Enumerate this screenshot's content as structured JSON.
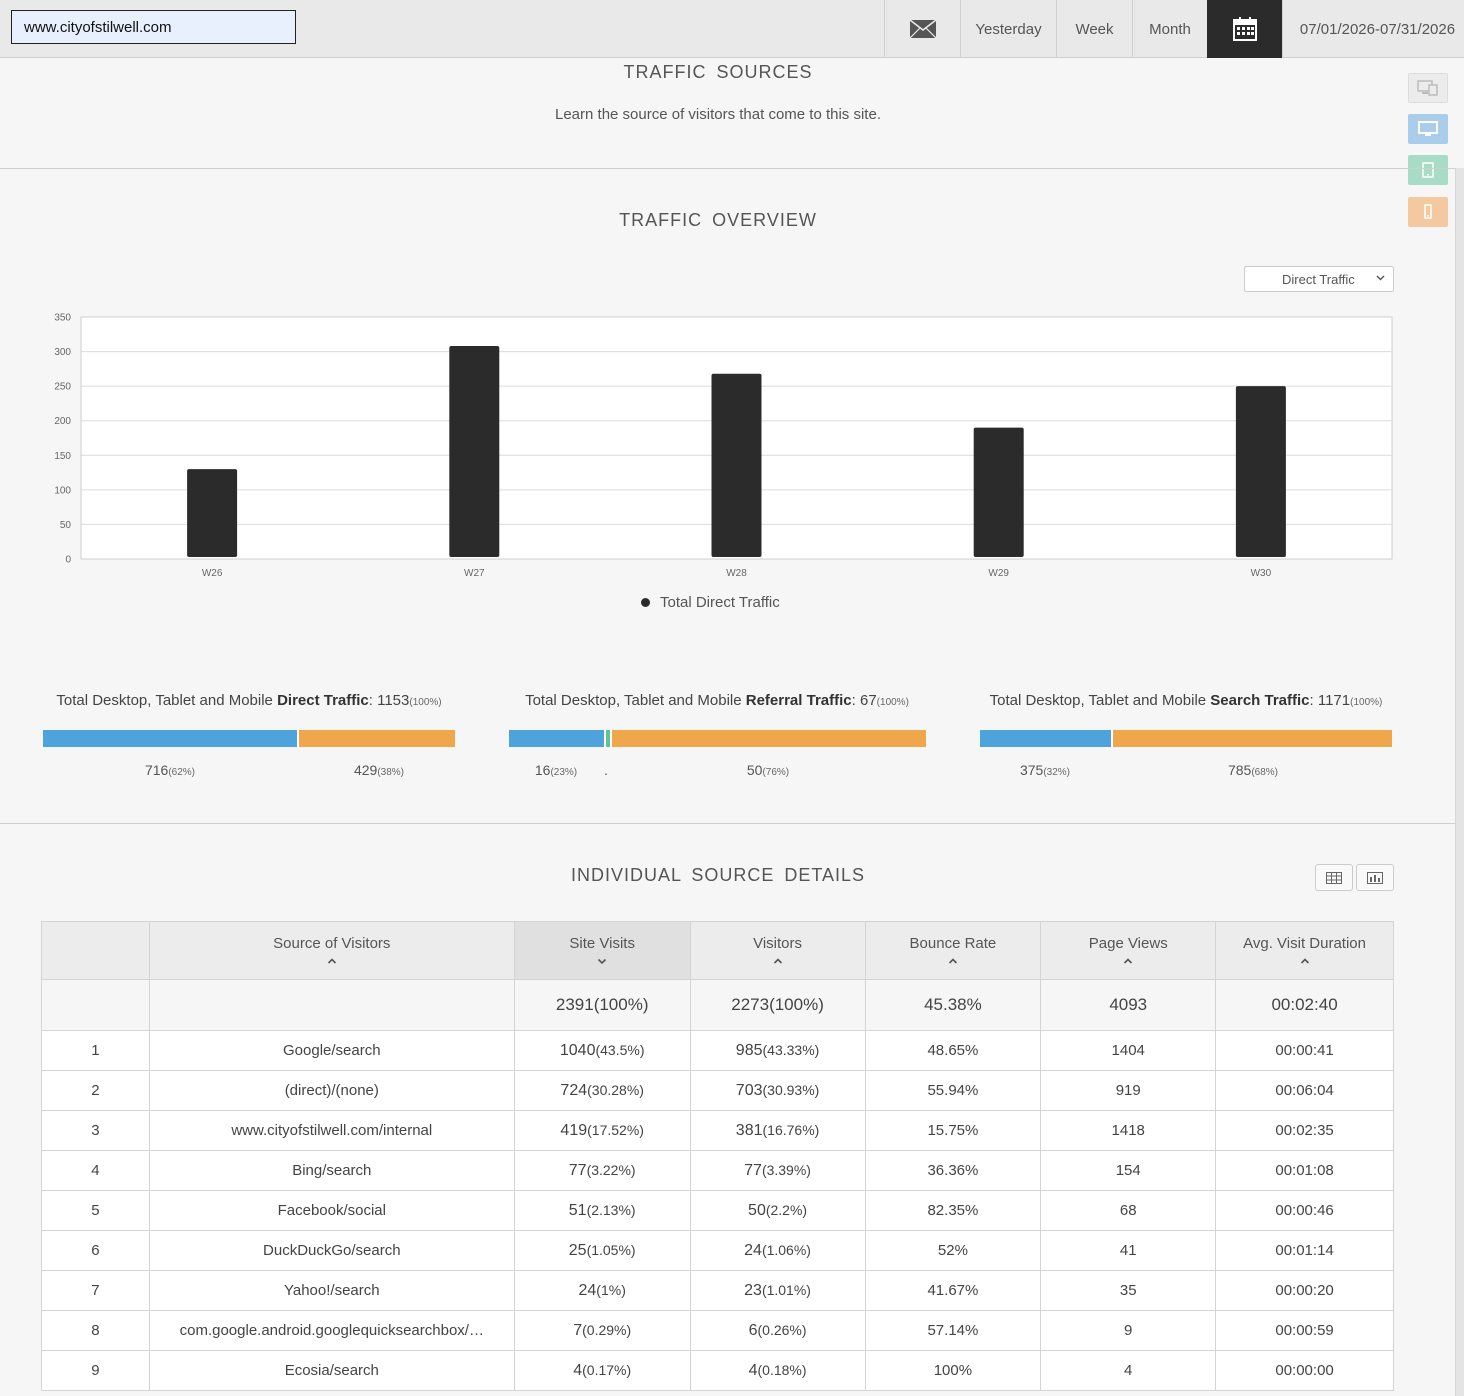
{
  "header": {
    "site": "www.cityofstilwell.com",
    "nav": {
      "yesterday": "Yesterday",
      "week": "Week",
      "month": "Month",
      "date_range": "07/01/2026-07/31/2026"
    },
    "icons": {
      "mail": "mail-icon",
      "calendar": "calendar-icon"
    }
  },
  "devices": [
    "all-devices-icon",
    "desktop-icon",
    "tablet-icon",
    "mobile-icon"
  ],
  "traffic_sources": {
    "title": "TRAFFIC  SOURCES",
    "subtitle": "Learn the source of visitors that come to this site."
  },
  "overview": {
    "title": "TRAFFIC  OVERVIEW",
    "select_value": "Direct Traffic",
    "legend": "Total Direct Traffic"
  },
  "chart_data": {
    "type": "bar",
    "categories": [
      "W26",
      "W27",
      "W28",
      "W29",
      "W30"
    ],
    "series": [
      {
        "name": "Total Direct Traffic",
        "values": [
          130,
          308,
          268,
          190,
          250
        ],
        "color": "#2b2b2b"
      }
    ],
    "ylim": [
      0,
      350
    ],
    "yticks": [
      0,
      50,
      100,
      150,
      200,
      250,
      300,
      350
    ],
    "grid": true,
    "legend_position": "bottom"
  },
  "totals": [
    {
      "prefix": "Total Desktop, Tablet and Mobile ",
      "kind": "Direct Traffic",
      "value": "1153",
      "pct": "(100%)",
      "desktop": "716",
      "desktop_pct": "(62%)",
      "tablet": "",
      "tablet_pct": "",
      "mobile": "429",
      "mobile_pct": "(38%)",
      "desktop_frac": 0.62,
      "tablet_frac": 0.0,
      "mobile_frac": 0.38
    },
    {
      "prefix": "Total Desktop, Tablet and Mobile ",
      "kind": "Referral Traffic",
      "value": "67",
      "pct": "(100%)",
      "desktop": "16",
      "desktop_pct": "(23%)",
      "tablet": ".",
      "tablet_pct": "",
      "mobile": "50",
      "mobile_pct": "(76%)",
      "desktop_frac": 0.23,
      "tablet_frac": 0.01,
      "mobile_frac": 0.76
    },
    {
      "prefix": "Total Desktop, Tablet and Mobile ",
      "kind": "Search Traffic",
      "value": "1171",
      "pct": "(100%)",
      "desktop": "375",
      "desktop_pct": "(32%)",
      "tablet": "",
      "tablet_pct": "",
      "mobile": "785",
      "mobile_pct": "(68%)",
      "desktop_frac": 0.32,
      "tablet_frac": 0.0,
      "mobile_frac": 0.68
    }
  ],
  "details": {
    "title": "INDIVIDUAL  SOURCE  DETAILS",
    "columns": [
      "",
      "Source of Visitors",
      "Site Visits",
      "Visitors",
      "Bounce Rate",
      "Page Views",
      "Avg. Visit Duration"
    ],
    "summary": {
      "visits": "2391(100%)",
      "visitors": "2273(100%)",
      "bounce": "45.38%",
      "pageviews": "4093",
      "duration": "00:02:40"
    },
    "rows": [
      {
        "n": "1",
        "source": "Google/search",
        "visits": "1040",
        "visits_pct": "(43.5%)",
        "visitors": "985",
        "visitors_pct": "(43.33%)",
        "bounce": "48.65%",
        "pageviews": "1404",
        "duration": "00:00:41"
      },
      {
        "n": "2",
        "source": "(direct)/(none)",
        "visits": "724",
        "visits_pct": "(30.28%)",
        "visitors": "703",
        "visitors_pct": "(30.93%)",
        "bounce": "55.94%",
        "pageviews": "919",
        "duration": "00:06:04"
      },
      {
        "n": "3",
        "source": "www.cityofstilwell.com/internal",
        "visits": "419",
        "visits_pct": "(17.52%)",
        "visitors": "381",
        "visitors_pct": "(16.76%)",
        "bounce": "15.75%",
        "pageviews": "1418",
        "duration": "00:02:35"
      },
      {
        "n": "4",
        "source": "Bing/search",
        "visits": "77",
        "visits_pct": "(3.22%)",
        "visitors": "77",
        "visitors_pct": "(3.39%)",
        "bounce": "36.36%",
        "pageviews": "154",
        "duration": "00:01:08"
      },
      {
        "n": "5",
        "source": "Facebook/social",
        "visits": "51",
        "visits_pct": "(2.13%)",
        "visitors": "50",
        "visitors_pct": "(2.2%)",
        "bounce": "82.35%",
        "pageviews": "68",
        "duration": "00:00:46"
      },
      {
        "n": "6",
        "source": "DuckDuckGo/search",
        "visits": "25",
        "visits_pct": "(1.05%)",
        "visitors": "24",
        "visitors_pct": "(1.06%)",
        "bounce": "52%",
        "pageviews": "41",
        "duration": "00:01:14"
      },
      {
        "n": "7",
        "source": "Yahoo!/search",
        "visits": "24",
        "visits_pct": "(1%)",
        "visitors": "23",
        "visitors_pct": "(1.01%)",
        "bounce": "41.67%",
        "pageviews": "35",
        "duration": "00:00:20"
      },
      {
        "n": "8",
        "source": "com.google.android.googlequicksearchbox/…",
        "visits": "7",
        "visits_pct": "(0.29%)",
        "visitors": "6",
        "visitors_pct": "(0.26%)",
        "bounce": "57.14%",
        "pageviews": "9",
        "duration": "00:00:59"
      },
      {
        "n": "9",
        "source": "Ecosia/search",
        "visits": "4",
        "visits_pct": "(0.17%)",
        "visitors": "4",
        "visitors_pct": "(0.18%)",
        "bounce": "100%",
        "pageviews": "4",
        "duration": "00:00:00"
      }
    ]
  }
}
